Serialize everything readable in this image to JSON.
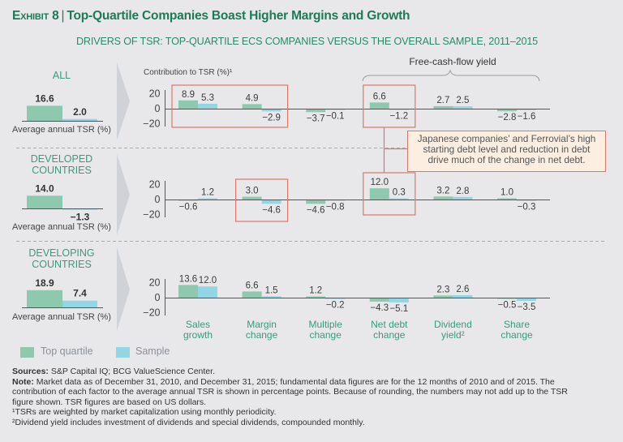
{
  "header": {
    "exhibit_label": "Exhibit 8",
    "separator": "|",
    "title": "Top-Quartile Companies Boast Higher Margins and Growth",
    "subtitle": "DRIVERS OF TSR: TOP-QUARTILE ECS COMPANIES VERSUS THE OVERALL SAMPLE, 2011–2015"
  },
  "colors": {
    "title": "#1d7a56",
    "category_green": "#3a9a78",
    "highlight_red": "#d9786b",
    "callout_fill": "#fcefe1",
    "top_quartile": "#8ec8ae",
    "sample": "#92d5e5"
  },
  "chart_data": {
    "type": "bar",
    "title": "Drivers of TSR: Top-Quartile ECS Companies Versus the Overall Sample, 2011–2015",
    "ylabel": "Contribution to TSR (%)¹",
    "xlabel": "",
    "yticks": [
      20,
      0,
      -20
    ],
    "ylim": [
      -20,
      20
    ],
    "grid": false,
    "categories": [
      "Sales growth",
      "Margin change",
      "Multiple change",
      "Net debt change",
      "Dividend yield²",
      "Share change"
    ],
    "panels": [
      {
        "name": "ALL",
        "label_lines": [
          "ALL"
        ],
        "avg_tsr_label": "Average annual TSR (%)",
        "avg_tsr": {
          "top_quartile": 16.6,
          "sample": 2.0
        },
        "series": [
          {
            "name": "Top quartile",
            "values": [
              8.9,
              4.9,
              -3.7,
              6.6,
              2.7,
              -2.8
            ]
          },
          {
            "name": "Sample",
            "values": [
              5.3,
              -2.9,
              -0.1,
              -1.2,
              2.5,
              -1.6
            ]
          }
        ]
      },
      {
        "name": "DEVELOPED COUNTRIES",
        "label_lines": [
          "DEVELOPED",
          "COUNTRIES"
        ],
        "avg_tsr_label": "Average annual TSR (%)",
        "avg_tsr": {
          "top_quartile": 14.0,
          "sample": -1.3
        },
        "series": [
          {
            "name": "Top quartile",
            "values": [
              -0.6,
              3.0,
              -4.6,
              12.0,
              3.2,
              1.0
            ]
          },
          {
            "name": "Sample",
            "values": [
              1.2,
              -4.6,
              -0.8,
              0.3,
              2.8,
              -0.3
            ]
          }
        ]
      },
      {
        "name": "DEVELOPING COUNTRIES",
        "label_lines": [
          "DEVELOPING",
          "COUNTRIES"
        ],
        "avg_tsr_label": "Average annual TSR (%)",
        "avg_tsr": {
          "top_quartile": 18.9,
          "sample": 7.4
        },
        "series": [
          {
            "name": "Top quartile",
            "values": [
              13.6,
              6.6,
              1.2,
              -4.3,
              2.3,
              -0.5
            ]
          },
          {
            "name": "Sample",
            "values": [
              12.0,
              1.5,
              -0.2,
              -5.1,
              2.6,
              -3.5
            ]
          }
        ]
      }
    ],
    "group_bracket": {
      "label": "Free-cash-flow yield",
      "categories": [
        "Net debt change",
        "Dividend yield²",
        "Share change"
      ]
    },
    "highlights": [
      {
        "panel": 0,
        "categories": [
          0,
          1
        ]
      },
      {
        "panel": 0,
        "categories": [
          3
        ]
      },
      {
        "panel": 1,
        "categories": [
          1
        ]
      },
      {
        "panel": 1,
        "categories": [
          3
        ]
      }
    ],
    "legend": [
      {
        "name": "Top quartile",
        "color": "#8ec8ae"
      },
      {
        "name": "Sample",
        "color": "#92d5e5"
      }
    ],
    "legend_position": "bottom-left"
  },
  "callout": {
    "lines": [
      "Japanese companies’ and Ferrovial’s high",
      "starting debt level and reduction in debt",
      "drive much of the change in net debt."
    ]
  },
  "footer": {
    "sources_label": "Sources:",
    "sources_text": " S&P Capital IQ; BCG ValueScience Center.",
    "note_label": "Note:",
    "note_text": " Market data as of December 31, 2010, and December 31, 2015; fundamental data figures are for the 12 months of 2010 and of 2015. The contribution of each factor to the average annual TSR is shown in percentage points. Because of rounding, the numbers may not add up to the TSR figure shown. TSR figures are based on US dollars.",
    "footnote_1": "¹TSRs are weighted by market capitalization using monthly periodicity.",
    "footnote_2": "²Dividend yield includes investment of dividends and special dividends, compounded monthly."
  }
}
